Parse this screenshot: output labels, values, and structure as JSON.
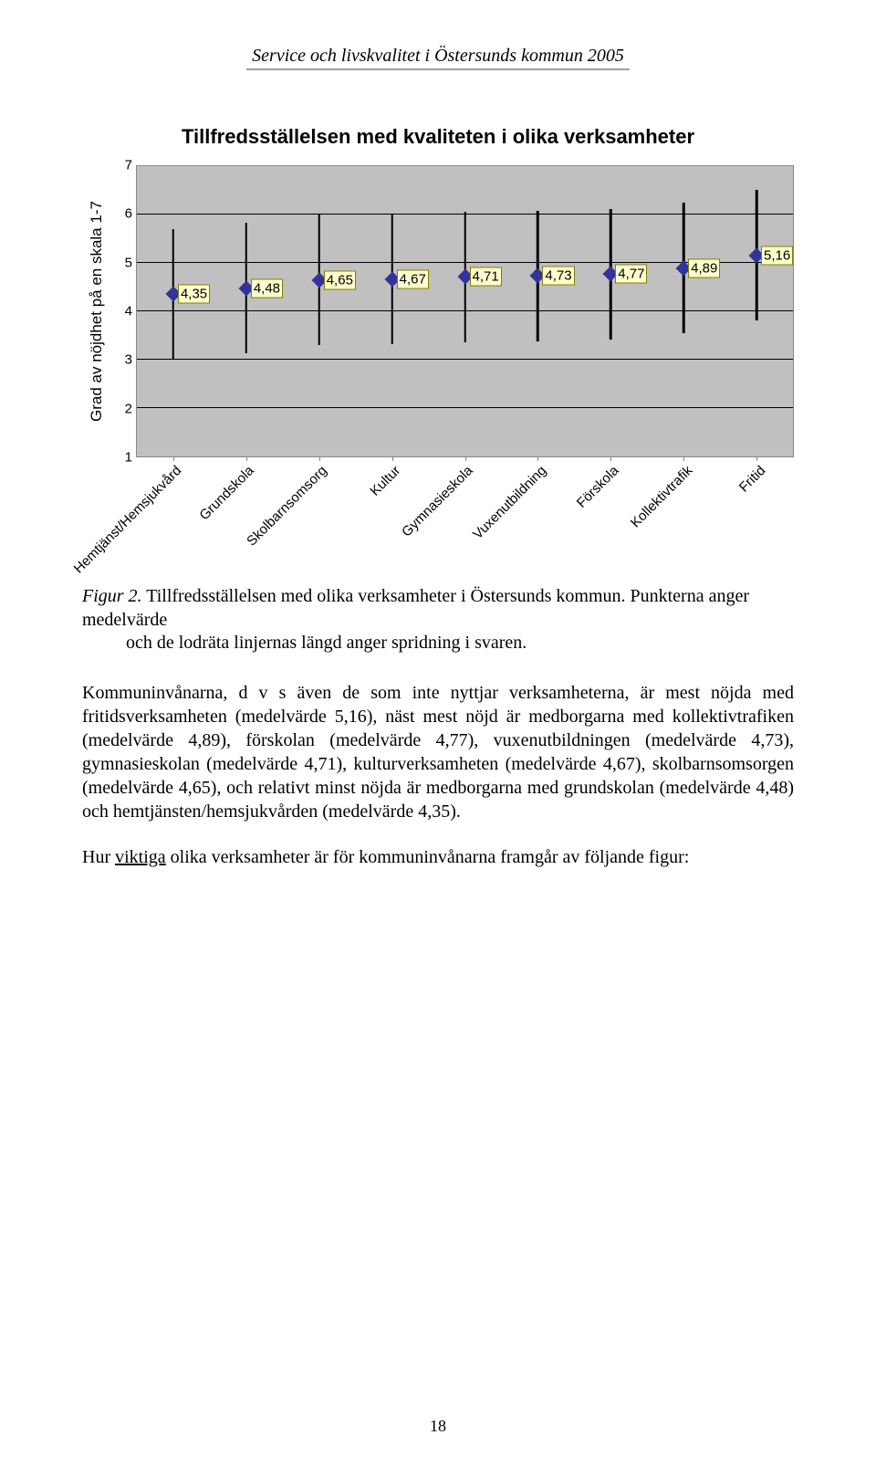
{
  "header": "Service och livskvalitet i Östersunds kommun 2005",
  "chart": {
    "type": "point-range",
    "title": "Tillfredsställelsen med kvaliteten i olika verksamheter",
    "ylabel": "Grad av nöjdhet på en skala 1-7",
    "ylim": [
      1,
      7
    ],
    "yticks": [
      1,
      2,
      3,
      4,
      5,
      6,
      7
    ],
    "error_half": 1.35,
    "plot_bg": "#c0c0c0",
    "grid_color": "#000000",
    "marker_fill": "#333399",
    "marker_size": 12,
    "label_bg": "#ffffcc",
    "label_border": "#808000",
    "categories": [
      "Hemtjänst/Hemsjukvård",
      "Grundskola",
      "Skolbarnsomsorg",
      "Kultur",
      "Gymnasieskola",
      "Vuxenutbildning",
      "Förskola",
      "Kollektivtrafik",
      "Fritid"
    ],
    "values": [
      4.35,
      4.48,
      4.65,
      4.67,
      4.71,
      4.73,
      4.77,
      4.89,
      5.16
    ],
    "labels": [
      "4,35",
      "4,48",
      "4,65",
      "4,67",
      "4,71",
      "4,73",
      "4,77",
      "4,89",
      "5,16"
    ]
  },
  "caption": {
    "fig": "Figur 2.",
    "line1": " Tillfredsställelsen med olika verksamheter i Östersunds kommun. Punkterna anger medelvärde",
    "line2": "och de lodräta linjernas längd anger spridning i svaren."
  },
  "para1": "Kommuninvånarna, d v s även de som inte nyttjar verksamheterna, är mest nöjda med fritidsverksamheten (medelvärde 5,16), näst mest nöjd är medborgarna med kollektivtrafiken (medelvärde 4,89), förskolan (medelvärde 4,77), vuxenutbildningen (medelvärde 4,73), gymnasieskolan (medelvärde 4,71), kulturverksamheten (medelvärde 4,67), skolbarnsomsorgen (medelvärde 4,65), och relativt minst nöjda är medborgarna med grundskolan (medelvärde 4,48) och hemtjänsten/hemsjukvården (medelvärde 4,35).",
  "para2_pre": "Hur ",
  "para2_u": "viktiga",
  "para2_post": " olika verksamheter är för kommuninvånarna framgår av följande figur:",
  "pagenum": "18"
}
